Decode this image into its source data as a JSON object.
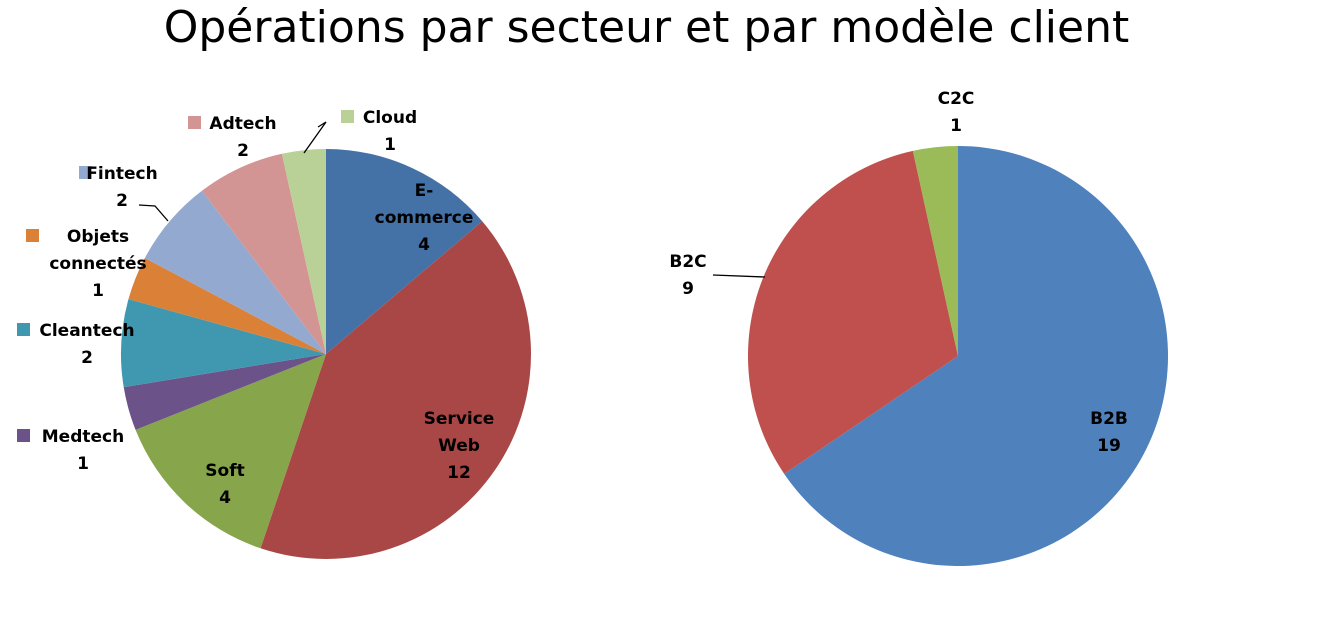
{
  "title": "Opérations par secteur et par modèle client",
  "chart_data": [
    {
      "type": "pie",
      "title": "",
      "slices": [
        {
          "name": "E-commerce",
          "value": 4,
          "color": "#4472A7",
          "label_lines": [
            "E-",
            "commerce",
            "4"
          ]
        },
        {
          "name": "Service Web",
          "value": 12,
          "color": "#A84745",
          "label_lines": [
            "Service",
            "Web",
            "12"
          ]
        },
        {
          "name": "Soft",
          "value": 4,
          "color": "#87A54B",
          "label_lines": [
            "Soft",
            "4"
          ]
        },
        {
          "name": "Medtech",
          "value": 1,
          "color": "#6B538A",
          "label_lines": [
            "Medtech",
            "1"
          ]
        },
        {
          "name": "Cleantech",
          "value": 2,
          "color": "#3F98AF",
          "label_lines": [
            "Cleantech",
            "2"
          ]
        },
        {
          "name": "Objets connectés",
          "value": 1,
          "color": "#DA8137",
          "label_lines": [
            "Objets",
            "connectés",
            "1"
          ]
        },
        {
          "name": "Fintech",
          "value": 2,
          "color": "#93A9D0",
          "label_lines": [
            "Fintech",
            "2"
          ]
        },
        {
          "name": "Adtech",
          "value": 2,
          "color": "#D39593",
          "label_lines": [
            "Adtech",
            "2"
          ]
        },
        {
          "name": "Cloud",
          "value": 1,
          "color": "#B9D197",
          "label_lines": [
            "Cloud",
            "1"
          ]
        }
      ]
    },
    {
      "type": "pie",
      "title": "",
      "slices": [
        {
          "name": "B2B",
          "value": 19,
          "color": "#4F81BD",
          "label_lines": [
            "B2B",
            "19"
          ]
        },
        {
          "name": "B2C",
          "value": 9,
          "color": "#C0504D",
          "label_lines": [
            "B2C",
            "9"
          ]
        },
        {
          "name": "C2C",
          "value": 1,
          "color": "#9BBB59",
          "label_lines": [
            "C2C",
            "1"
          ]
        }
      ]
    }
  ]
}
